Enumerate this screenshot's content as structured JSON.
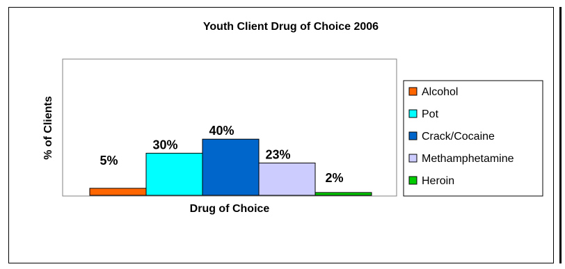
{
  "chart_data": {
    "type": "bar",
    "title": "Youth Client Drug of Choice 2006",
    "xlabel": "Drug of Choice",
    "ylabel": "% of Clients",
    "ylim": [
      0,
      100
    ],
    "grid": false,
    "legend_position": "right",
    "categories": [
      "Alcohol",
      "Pot",
      "Crack/Cocaine",
      "Methamphetamine",
      "Heroin"
    ],
    "values": [
      5,
      30,
      40,
      23,
      2
    ],
    "data_labels": [
      "5%",
      "30%",
      "40%",
      "23%",
      "2%"
    ],
    "colors": [
      "#ff6600",
      "#00ffff",
      "#0066cc",
      "#ccccff",
      "#00cc00"
    ]
  }
}
